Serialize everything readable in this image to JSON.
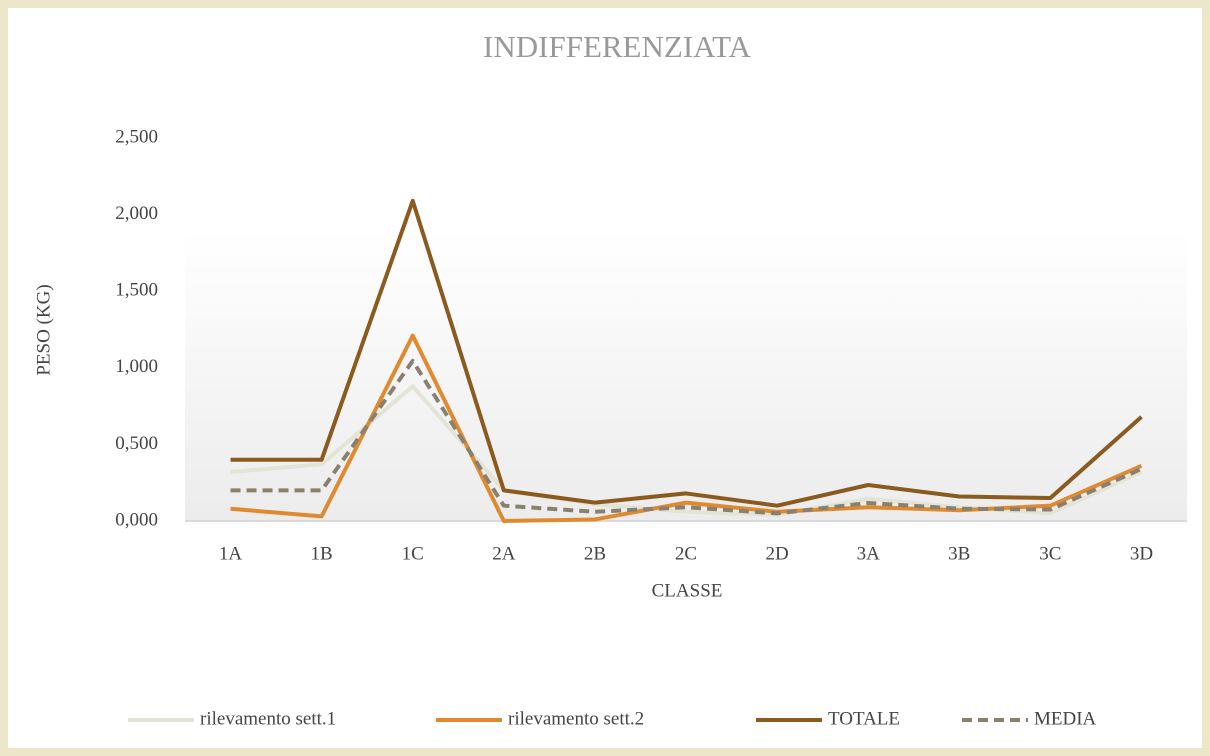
{
  "chart_data": {
    "type": "line",
    "title": "INDIFFERENZIATA",
    "x_label": "CLASSE",
    "y_label": "PESO (KG)",
    "categories": [
      "1A",
      "1B",
      "1C",
      "2A",
      "2B",
      "2C",
      "2D",
      "3A",
      "3B",
      "3C",
      "3D"
    ],
    "series": [
      {
        "name": "rilevamento sett.1",
        "color": "#e3e4d6",
        "style": "solid",
        "values": [
          0.32,
          0.37,
          0.88,
          0.2,
          0.11,
          0.06,
          0.04,
          0.145,
          0.09,
          0.05,
          0.32
        ]
      },
      {
        "name": "rilevamento sett.2",
        "color": "#e08a30",
        "style": "solid",
        "values": [
          0.08,
          0.03,
          1.21,
          0.0,
          0.01,
          0.12,
          0.06,
          0.09,
          0.07,
          0.1,
          0.36
        ]
      },
      {
        "name": "TOTALE",
        "color": "#8b5a1e",
        "style": "solid",
        "values": [
          0.4,
          0.4,
          2.09,
          0.2,
          0.12,
          0.18,
          0.1,
          0.235,
          0.16,
          0.15,
          0.68
        ]
      },
      {
        "name": "MEDIA",
        "color": "#8a8070",
        "style": "dashed",
        "values": [
          0.2,
          0.2,
          1.045,
          0.1,
          0.06,
          0.09,
          0.05,
          0.1175,
          0.08,
          0.075,
          0.34
        ]
      }
    ],
    "ylim": [
      0,
      2.5
    ],
    "yticks": [
      {
        "value": 0,
        "label": "0,000"
      },
      {
        "value": 0.5,
        "label": "0,500"
      },
      {
        "value": 1,
        "label": "1,000"
      },
      {
        "value": 1.5,
        "label": "1,500"
      },
      {
        "value": 2,
        "label": "2,000"
      },
      {
        "value": 2.5,
        "label": "2,500"
      }
    ],
    "grid": false,
    "legend": "bottom"
  }
}
